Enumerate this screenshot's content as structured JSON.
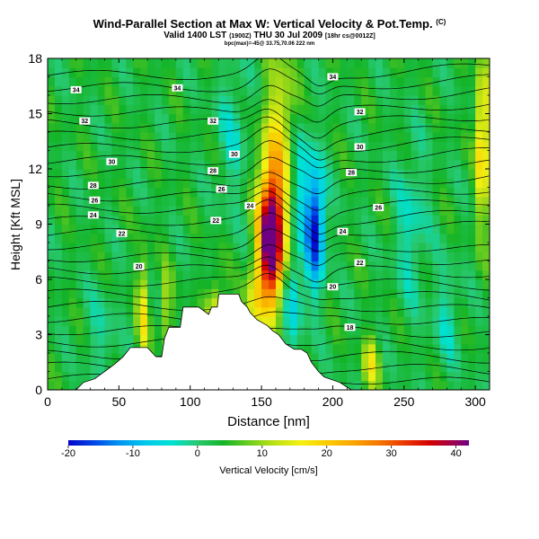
{
  "header": {
    "title": "Wind-Parallel Section at Max W: Vertical Velocity & Pot.Temp.",
    "title_mark": "(C)",
    "subtitle": "Valid 1400 LST",
    "subtitle_small_1": "(1900Z)",
    "subtitle_main_2": "THU 30 Jul 2009",
    "subtitle_small_2": "[18hr cs@0012Z]",
    "meta": "bpc(max)=-45@ 33.75,70.06 222 nm"
  },
  "chart_data": {
    "type": "heatmap",
    "title": "Wind-Parallel Section at Max W: Vertical Velocity & Pot.Temp.",
    "xlabel": "Distance [nm]",
    "ylabel": "Height [Kft MSL]",
    "xlim": [
      0,
      310
    ],
    "ylim": [
      0,
      18
    ],
    "xticks": [
      0,
      50,
      100,
      150,
      200,
      250,
      300
    ],
    "yticks": [
      0,
      3,
      6,
      9,
      12,
      15,
      18
    ],
    "field": "Vertical Velocity [cm/s]",
    "colorbar": {
      "label": "Vertical Velocity [cm/s]",
      "range": [
        -20,
        42
      ],
      "tick_values": [
        -20,
        -10,
        0,
        10,
        20,
        30,
        40
      ],
      "tick_labels": [
        "-20",
        "-10",
        "0",
        "10",
        "20",
        "30",
        "40"
      ]
    },
    "background_w": 3,
    "features": [
      {
        "type": "updraft",
        "x": 157,
        "y": 7.8,
        "w": 42,
        "sx": 6,
        "sy": 2.2
      },
      {
        "type": "updraft",
        "x": 157,
        "y": 10.5,
        "w": 14,
        "sx": 7,
        "sy": 2.5
      },
      {
        "type": "updraft",
        "x": 164,
        "y": 14.5,
        "w": 10,
        "sx": 8,
        "sy": 3
      },
      {
        "type": "updraft",
        "x": 145,
        "y": 4.5,
        "w": 12,
        "sx": 5,
        "sy": 1.5
      },
      {
        "type": "updraft",
        "x": 118,
        "y": 3.5,
        "w": 16,
        "sx": 4,
        "sy": 1.6
      },
      {
        "type": "updraft",
        "x": 67,
        "y": 4.0,
        "w": 12,
        "sx": 3,
        "sy": 2.2
      },
      {
        "type": "updraft",
        "x": 83,
        "y": 4.5,
        "w": 8,
        "sx": 3,
        "sy": 1.5
      },
      {
        "type": "updraft",
        "x": 305,
        "y": 13.5,
        "w": 20,
        "sx": 3,
        "sy": 3
      },
      {
        "type": "updraft",
        "x": 227,
        "y": 1.5,
        "w": 12,
        "sx": 4,
        "sy": 1
      },
      {
        "type": "downdraft",
        "x": 188,
        "y": 8.8,
        "w": -22,
        "sx": 4.5,
        "sy": 2.2
      },
      {
        "type": "downdraft",
        "x": 178,
        "y": 11.5,
        "w": -8,
        "sx": 6,
        "sy": 2.5
      },
      {
        "type": "downdraft",
        "x": 172,
        "y": 5.0,
        "w": -9,
        "sx": 5,
        "sy": 2
      },
      {
        "type": "downdraft",
        "x": 255,
        "y": 9.0,
        "w": -6,
        "sx": 8,
        "sy": 3
      },
      {
        "type": "downdraft",
        "x": 130,
        "y": 14.0,
        "w": -5,
        "sx": 8,
        "sy": 3
      },
      {
        "type": "downdraft",
        "x": 38,
        "y": 3.0,
        "w": -4,
        "sx": 8,
        "sy": 2
      },
      {
        "type": "downdraft",
        "x": 280,
        "y": 4.0,
        "w": -5,
        "sx": 7,
        "sy": 2
      }
    ],
    "isentrope_labels": [
      {
        "text": "34",
        "x": 20,
        "y": 16.3
      },
      {
        "text": "34",
        "x": 91,
        "y": 16.4
      },
      {
        "text": "34",
        "x": 200,
        "y": 17.0
      },
      {
        "text": "32",
        "x": 26,
        "y": 14.6
      },
      {
        "text": "32",
        "x": 116,
        "y": 14.6
      },
      {
        "text": "32",
        "x": 219,
        "y": 15.1
      },
      {
        "text": "30",
        "x": 45,
        "y": 12.4
      },
      {
        "text": "30",
        "x": 131,
        "y": 12.8
      },
      {
        "text": "30",
        "x": 219,
        "y": 13.2
      },
      {
        "text": "28",
        "x": 32,
        "y": 11.1
      },
      {
        "text": "28",
        "x": 116,
        "y": 11.9
      },
      {
        "text": "28",
        "x": 213,
        "y": 11.8
      },
      {
        "text": "26",
        "x": 33,
        "y": 10.3
      },
      {
        "text": "26",
        "x": 122,
        "y": 10.9
      },
      {
        "text": "26",
        "x": 232,
        "y": 9.9
      },
      {
        "text": "24",
        "x": 32,
        "y": 9.5
      },
      {
        "text": "24",
        "x": 142,
        "y": 10.0
      },
      {
        "text": "24",
        "x": 207,
        "y": 8.6
      },
      {
        "text": "22",
        "x": 52,
        "y": 8.5
      },
      {
        "text": "22",
        "x": 118,
        "y": 9.2
      },
      {
        "text": "22",
        "x": 219,
        "y": 6.9
      },
      {
        "text": "20",
        "x": 64,
        "y": 6.7
      },
      {
        "text": "20",
        "x": 200,
        "y": 5.6
      },
      {
        "text": "18",
        "x": 212,
        "y": 3.4
      }
    ],
    "terrain": [
      [
        0,
        0
      ],
      [
        20,
        0
      ],
      [
        25,
        0.4
      ],
      [
        33,
        0.6
      ],
      [
        40,
        1.0
      ],
      [
        47,
        1.4
      ],
      [
        53,
        1.8
      ],
      [
        58,
        2.3
      ],
      [
        70,
        2.3
      ],
      [
        76,
        1.8
      ],
      [
        80,
        1.8
      ],
      [
        82,
        2.8
      ],
      [
        85,
        3.4
      ],
      [
        93,
        3.4
      ],
      [
        95,
        4.5
      ],
      [
        106,
        4.5
      ],
      [
        113,
        4.1
      ],
      [
        115,
        4.5
      ],
      [
        119,
        4.5
      ],
      [
        120,
        5.2
      ],
      [
        134,
        5.2
      ],
      [
        136,
        4.8
      ],
      [
        140,
        4.5
      ],
      [
        142,
        4.2
      ],
      [
        147,
        3.8
      ],
      [
        154,
        3.5
      ],
      [
        158,
        3.2
      ],
      [
        162,
        3.0
      ],
      [
        167,
        2.5
      ],
      [
        173,
        2.2
      ],
      [
        178,
        2.2
      ],
      [
        182,
        2.0
      ],
      [
        185,
        1.5
      ],
      [
        190,
        1.0
      ],
      [
        194,
        0.7
      ],
      [
        205,
        0.4
      ],
      [
        213,
        0.0
      ],
      [
        220,
        0.0
      ],
      [
        310,
        0.0
      ]
    ]
  }
}
